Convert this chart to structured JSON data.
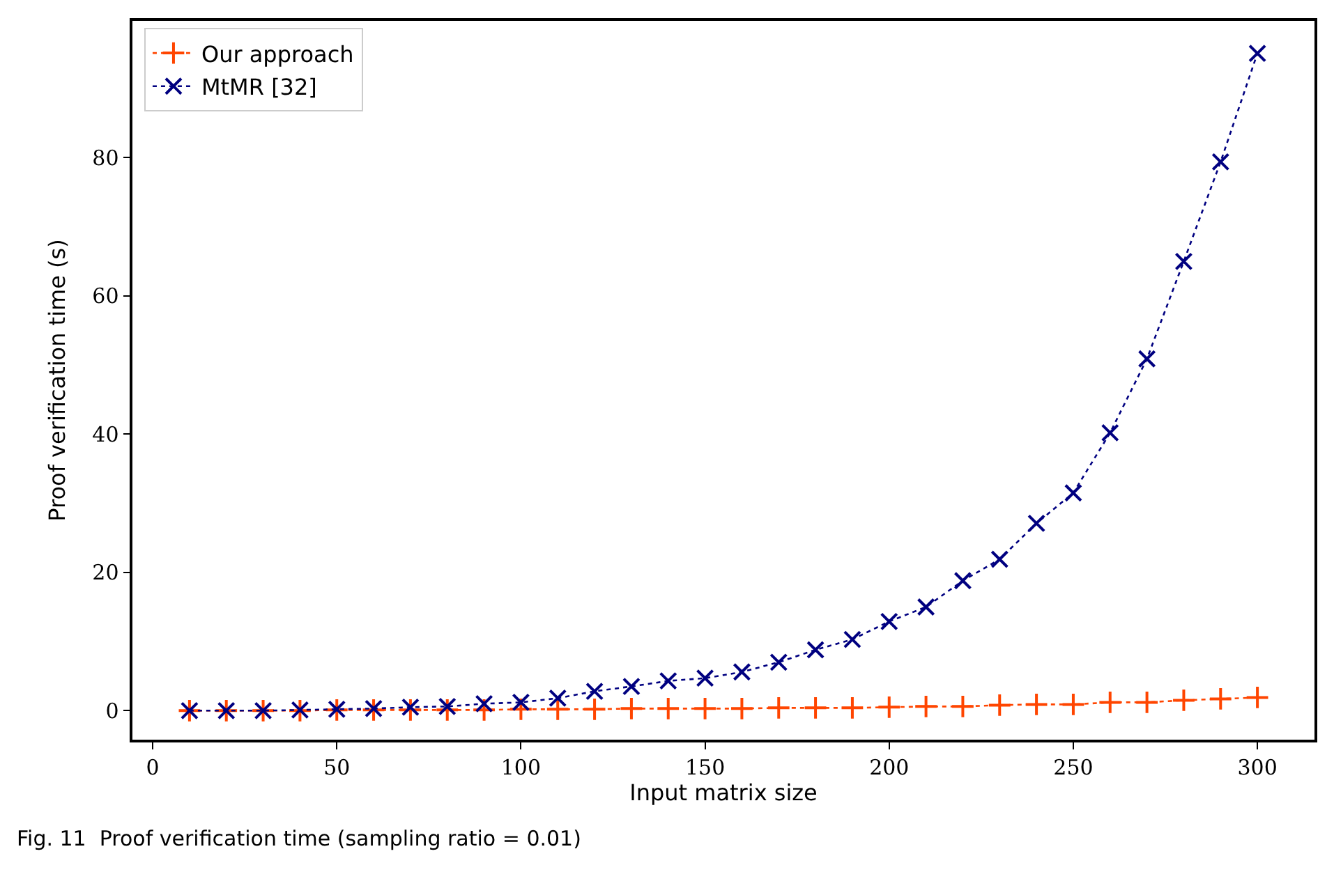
{
  "chart_data": {
    "type": "line",
    "xlabel": "Input matrix size",
    "ylabel": "Proof verification time (s)",
    "annotations": [
      "Fig. 11  Proof verification time (sampling ratio = 0.01)"
    ],
    "x": [
      10,
      20,
      30,
      40,
      50,
      60,
      70,
      80,
      90,
      100,
      110,
      120,
      130,
      140,
      150,
      160,
      170,
      180,
      190,
      200,
      210,
      220,
      230,
      240,
      250,
      260,
      270,
      280,
      290,
      300
    ],
    "series": [
      {
        "name": "Our approach",
        "color": "#ff4500",
        "marker": "plus",
        "values": [
          0.0,
          0.0,
          0.0,
          0.0,
          0.1,
          0.1,
          0.1,
          0.1,
          0.1,
          0.2,
          0.2,
          0.2,
          0.3,
          0.3,
          0.3,
          0.3,
          0.4,
          0.4,
          0.4,
          0.5,
          0.6,
          0.6,
          0.8,
          0.9,
          0.9,
          1.2,
          1.2,
          1.5,
          1.7,
          1.9
        ]
      },
      {
        "name": "MtMR [32]",
        "color": "#000080",
        "marker": "cross",
        "values": [
          0.0,
          0.0,
          0.0,
          0.1,
          0.2,
          0.3,
          0.5,
          0.6,
          1.0,
          1.2,
          1.8,
          2.8,
          3.5,
          4.3,
          4.7,
          5.6,
          7.0,
          8.8,
          10.3,
          12.9,
          15.0,
          18.8,
          21.9,
          27.1,
          31.5,
          40.2,
          50.9,
          65.0,
          79.4,
          95.1
        ]
      }
    ],
    "xlim": [
      -5.5,
      315.5
    ],
    "ylim": [
      -4.2,
      99.8
    ],
    "xticks": [
      0,
      50,
      100,
      150,
      200,
      250,
      300
    ],
    "yticks": [
      0,
      20,
      40,
      60,
      80
    ],
    "legend": "top left",
    "line_style": "dotted"
  }
}
